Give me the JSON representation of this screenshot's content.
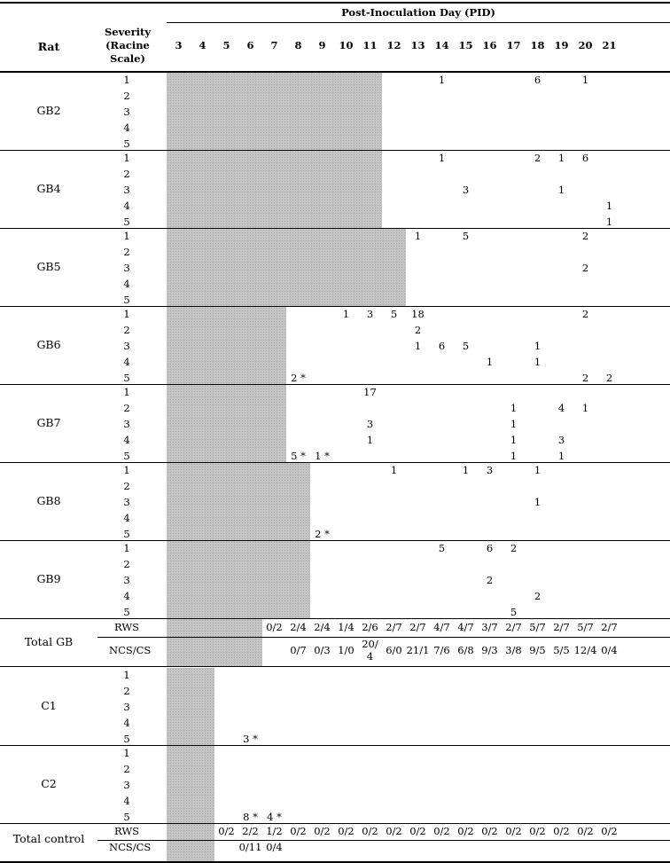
{
  "header": {
    "pid_title": "Post-Inoculation Day (PID)",
    "rat_label": "Rat",
    "severity_label_lines": [
      "Severity",
      "(Racine",
      "Scale)"
    ],
    "days": [
      "3",
      "4",
      "5",
      "6",
      "7",
      "8",
      "9",
      "10",
      "11",
      "12",
      "13",
      "14",
      "15",
      "16",
      "17",
      "18",
      "19",
      "20",
      "21"
    ]
  },
  "severity_levels": [
    "1",
    "2",
    "3",
    "4",
    "5"
  ],
  "rats": [
    {
      "id": "GB2",
      "shade_to_day": "11",
      "cells": [
        {
          "level": "1",
          "day": "14",
          "value": "1"
        },
        {
          "level": "1",
          "day": "18",
          "value": "6"
        },
        {
          "level": "1",
          "day": "20",
          "value": "1"
        }
      ]
    },
    {
      "id": "GB4",
      "shade_to_day": "11",
      "cells": [
        {
          "level": "1",
          "day": "14",
          "value": "1"
        },
        {
          "level": "1",
          "day": "18",
          "value": "2"
        },
        {
          "level": "1",
          "day": "19",
          "value": "1"
        },
        {
          "level": "1",
          "day": "20",
          "value": "6"
        },
        {
          "level": "3",
          "day": "15",
          "value": "3"
        },
        {
          "level": "3",
          "day": "19",
          "value": "1"
        },
        {
          "level": "4",
          "day": "21",
          "value": "1"
        },
        {
          "level": "5",
          "day": "21",
          "value": "1"
        }
      ]
    },
    {
      "id": "GB5",
      "shade_to_day": "12",
      "cells": [
        {
          "level": "1",
          "day": "13",
          "value": "1"
        },
        {
          "level": "1",
          "day": "15",
          "value": "5"
        },
        {
          "level": "1",
          "day": "20",
          "value": "2"
        },
        {
          "level": "3",
          "day": "20",
          "value": "2"
        }
      ]
    },
    {
      "id": "GB6",
      "shade_to_day": "7",
      "cells": [
        {
          "level": "1",
          "day": "10",
          "value": "1"
        },
        {
          "level": "1",
          "day": "11",
          "value": "3"
        },
        {
          "level": "1",
          "day": "12",
          "value": "5"
        },
        {
          "level": "1",
          "day": "13",
          "value": "18"
        },
        {
          "level": "1",
          "day": "20",
          "value": "2"
        },
        {
          "level": "2",
          "day": "13",
          "value": "2"
        },
        {
          "level": "3",
          "day": "13",
          "value": "1"
        },
        {
          "level": "3",
          "day": "14",
          "value": "6"
        },
        {
          "level": "3",
          "day": "15",
          "value": "5"
        },
        {
          "level": "3",
          "day": "18",
          "value": "1"
        },
        {
          "level": "4",
          "day": "16",
          "value": "1"
        },
        {
          "level": "4",
          "day": "18",
          "value": "1"
        },
        {
          "level": "5",
          "day": "8",
          "value": "2 *"
        },
        {
          "level": "5",
          "day": "20",
          "value": "2"
        },
        {
          "level": "5",
          "day": "21",
          "value": "2"
        }
      ]
    },
    {
      "id": "GB7",
      "shade_to_day": "7",
      "cells": [
        {
          "level": "1",
          "day": "11",
          "value": "17"
        },
        {
          "level": "2",
          "day": "17",
          "value": "1"
        },
        {
          "level": "2",
          "day": "19",
          "value": "4"
        },
        {
          "level": "2",
          "day": "20",
          "value": "1"
        },
        {
          "level": "3",
          "day": "11",
          "value": "3"
        },
        {
          "level": "3",
          "day": "17",
          "value": "1"
        },
        {
          "level": "4",
          "day": "11",
          "value": "1"
        },
        {
          "level": "4",
          "day": "17",
          "value": "1"
        },
        {
          "level": "4",
          "day": "19",
          "value": "3"
        },
        {
          "level": "5",
          "day": "8",
          "value": "5 *"
        },
        {
          "level": "5",
          "day": "9",
          "value": "1 *"
        },
        {
          "level": "5",
          "day": "17",
          "value": "1"
        },
        {
          "level": "5",
          "day": "19",
          "value": "1"
        }
      ]
    },
    {
      "id": "GB8",
      "shade_to_day": "8",
      "cells": [
        {
          "level": "1",
          "day": "12",
          "value": "1"
        },
        {
          "level": "1",
          "day": "15",
          "value": "1"
        },
        {
          "level": "1",
          "day": "16",
          "value": "3"
        },
        {
          "level": "1",
          "day": "18",
          "value": "1"
        },
        {
          "level": "3",
          "day": "18",
          "value": "1"
        },
        {
          "level": "5",
          "day": "9",
          "value": "2 *"
        }
      ]
    },
    {
      "id": "GB9",
      "shade_to_day": "8",
      "cells": [
        {
          "level": "1",
          "day": "14",
          "value": "5"
        },
        {
          "level": "1",
          "day": "16",
          "value": "6"
        },
        {
          "level": "1",
          "day": "17",
          "value": "2"
        },
        {
          "level": "3",
          "day": "16",
          "value": "2"
        },
        {
          "level": "4",
          "day": "18",
          "value": "2"
        },
        {
          "level": "5",
          "day": "17",
          "value": "5"
        }
      ]
    }
  ],
  "total_gb": {
    "label": "Total GB",
    "rws_label": "RWS",
    "ncs_label": "NCS/CS",
    "rws": {
      "7": "0/2",
      "8": "2/4",
      "9": "2/4",
      "10": "1/4",
      "11": "2/6",
      "12": "2/7",
      "13": "2/7",
      "14": "4/7",
      "15": "4/7",
      "16": "3/7",
      "17": "2/7",
      "18": "5/7",
      "19": "2/7",
      "20": "5/7",
      "21": "2/7"
    },
    "ncs": {
      "8": "0/7",
      "9": "0/3",
      "10": "1/0",
      "11": "20/\n4",
      "12": "6/0",
      "13": "21/1",
      "14": "7/6",
      "15": "6/8",
      "16": "9/3",
      "17": "3/8",
      "18": "9/5",
      "19": "5/5",
      "20": "12/4",
      "21": "0/4"
    }
  },
  "controls": [
    {
      "id": "C1",
      "cells": [
        {
          "level": "5",
          "day": "6",
          "value": "3 *"
        }
      ]
    },
    {
      "id": "C2",
      "cells": [
        {
          "level": "5",
          "day": "6",
          "value": "8 *"
        },
        {
          "level": "5",
          "day": "7",
          "value": "4 *"
        }
      ]
    }
  ],
  "total_control": {
    "label": "Total control",
    "rws_label": "RWS",
    "ncs_label": "NCS/CS",
    "rws": {
      "5": "0/2",
      "6": "2/2",
      "7": "1/2",
      "8": "0/2",
      "9": "0/2",
      "10": "0/2",
      "11": "0/2",
      "12": "0/2",
      "13": "0/2",
      "14": "0/2",
      "15": "0/2",
      "16": "0/2",
      "17": "0/2",
      "18": "0/2",
      "19": "0/2",
      "20": "0/2",
      "21": "0/2"
    },
    "ncs": {
      "6": "0/11",
      "7": "0/4"
    }
  }
}
